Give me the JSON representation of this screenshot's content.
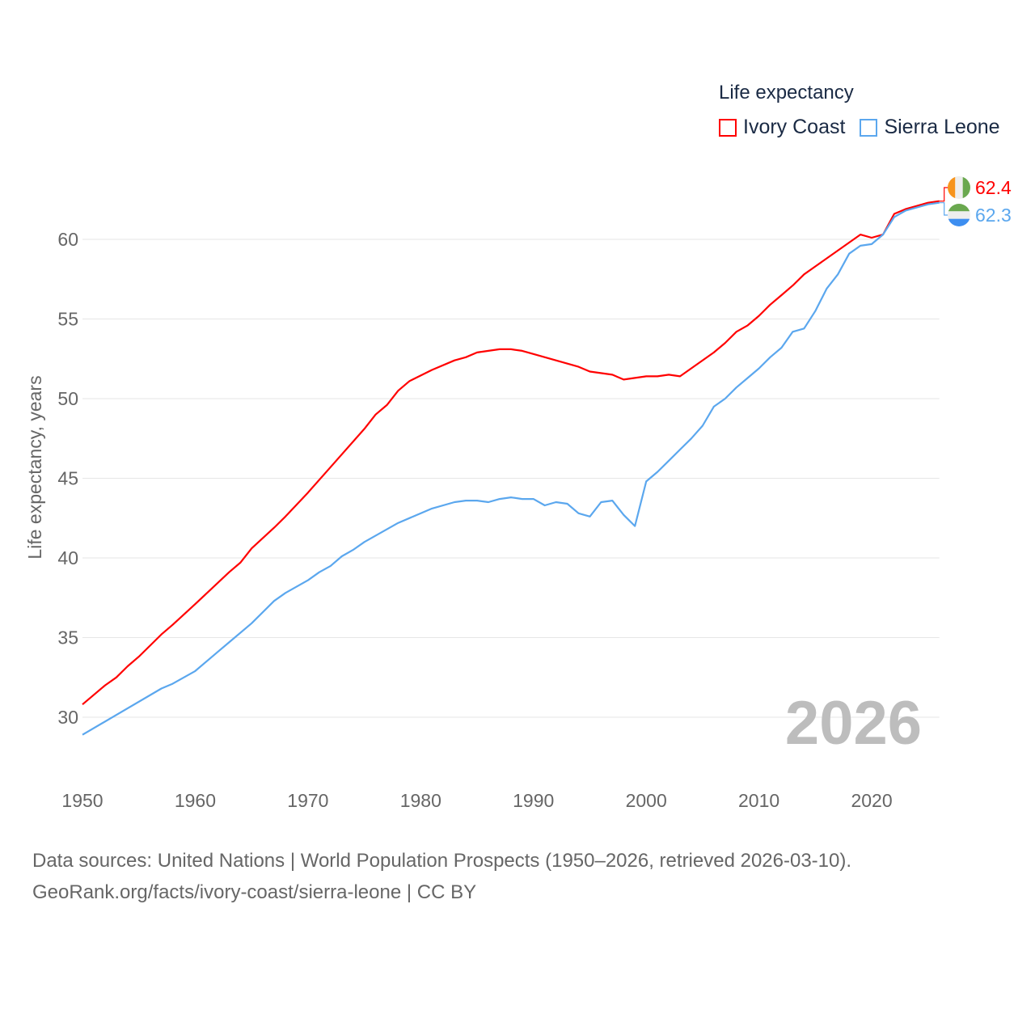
{
  "chart_data": {
    "type": "line",
    "title": "Life expectancy",
    "xlabel": "",
    "ylabel": "Life expectancy, years",
    "xlim": [
      1950,
      2026
    ],
    "ylim": [
      27.5,
      63
    ],
    "xticks": [
      1950,
      1960,
      1970,
      1980,
      1990,
      2000,
      2010,
      2020
    ],
    "yticks": [
      30,
      35,
      40,
      45,
      50,
      55,
      60
    ],
    "grid": true,
    "legend_placement": "top-right",
    "year_watermark": "2026",
    "series": [
      {
        "name": "Ivory Coast",
        "color": "#ff0000",
        "end_label": "62.4",
        "x": [
          1950,
          1952,
          1953,
          1954,
          1955,
          1957,
          1958,
          1960,
          1963,
          1964,
          1965,
          1967,
          1968,
          1970,
          1972,
          1975,
          1976,
          1977,
          1978,
          1979,
          1981,
          1983,
          1984,
          1985,
          1987,
          1988,
          1989,
          1990,
          1994,
          1995,
          1997,
          1998,
          2000,
          2001,
          2002,
          2003,
          2006,
          2007,
          2008,
          2009,
          2010,
          2011,
          2012,
          2013,
          2014,
          2015,
          2019,
          2020,
          2021,
          2022,
          2023,
          2025,
          2026
        ],
        "y": [
          30.8,
          32.0,
          32.5,
          33.2,
          33.8,
          35.2,
          35.8,
          37.1,
          39.1,
          39.7,
          40.6,
          41.9,
          42.6,
          44.1,
          45.7,
          48.1,
          49.0,
          49.6,
          50.5,
          51.1,
          51.8,
          52.4,
          52.6,
          52.9,
          53.1,
          53.1,
          53.0,
          52.8,
          52.0,
          51.7,
          51.5,
          51.2,
          51.4,
          51.4,
          51.5,
          51.4,
          52.9,
          53.5,
          54.2,
          54.6,
          55.2,
          55.9,
          56.5,
          57.1,
          57.8,
          58.3,
          60.3,
          60.1,
          60.3,
          61.6,
          61.9,
          62.3,
          62.4
        ]
      },
      {
        "name": "Sierra Leone",
        "color": "#5ba7ee",
        "end_label": "62.3",
        "x": [
          1950,
          1957,
          1958,
          1960,
          1962,
          1963,
          1965,
          1967,
          1968,
          1970,
          1971,
          1972,
          1973,
          1974,
          1975,
          1978,
          1981,
          1983,
          1984,
          1985,
          1986,
          1987,
          1988,
          1989,
          1990,
          1991,
          1992,
          1993,
          1994,
          1995,
          1996,
          1997,
          1998,
          1999,
          2000,
          2001,
          2002,
          2003,
          2004,
          2005,
          2006,
          2007,
          2008,
          2009,
          2010,
          2011,
          2012,
          2013,
          2014,
          2015,
          2016,
          2017,
          2018,
          2019,
          2020,
          2021,
          2022,
          2023,
          2025,
          2026
        ],
        "y": [
          28.9,
          31.8,
          32.1,
          32.9,
          34.1,
          34.7,
          35.9,
          37.3,
          37.8,
          38.6,
          39.1,
          39.5,
          40.1,
          40.5,
          41.0,
          42.2,
          43.1,
          43.5,
          43.6,
          43.6,
          43.5,
          43.7,
          43.8,
          43.7,
          43.7,
          43.3,
          43.5,
          43.4,
          42.8,
          42.6,
          43.5,
          43.6,
          42.7,
          42.0,
          44.8,
          45.4,
          46.1,
          46.8,
          47.5,
          48.3,
          49.5,
          50.0,
          50.7,
          51.3,
          51.9,
          52.6,
          53.2,
          54.2,
          54.4,
          55.5,
          56.9,
          57.8,
          59.1,
          59.6,
          59.7,
          60.3,
          61.4,
          61.8,
          62.2,
          62.3
        ]
      }
    ]
  },
  "source": {
    "line1": "Data sources: United Nations | World Population Prospects (1950–2026, retrieved 2026-03-10).",
    "line2": "GeoRank.org/facts/ivory-coast/sierra-leone | CC BY"
  }
}
